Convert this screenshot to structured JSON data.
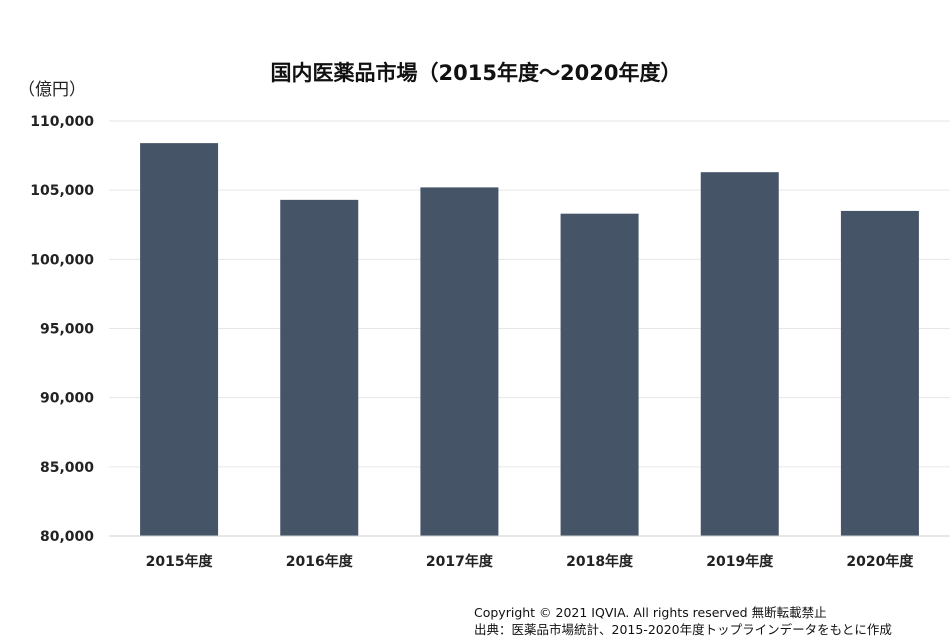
{
  "chart_data": {
    "type": "bar",
    "title": "国内医薬品市場（2015年度～2020年度）",
    "ylabel": "（億円）",
    "xlabel": "",
    "categories": [
      "2015年度",
      "2016年度",
      "2017年度",
      "2018年度",
      "2019年度",
      "2020年度"
    ],
    "values": [
      108400,
      104300,
      105200,
      103300,
      106300,
      103500
    ],
    "ylim": [
      80000,
      110000
    ],
    "yticks": [
      "110,000",
      "105,000",
      "100,000",
      "95,000",
      "90,000",
      "85,000",
      "80,000"
    ],
    "ytick_values": [
      110000,
      105000,
      100000,
      95000,
      90000,
      85000,
      80000
    ],
    "bar_color": "#465468",
    "grid": true,
    "legend": "none"
  },
  "footer": {
    "copyright": "Copyright © 2021 IQVIA. All rights reserved 無断転載禁止",
    "source": "出典：医薬品市場統計、2015-2020年度トップラインデータをもとに作成"
  }
}
